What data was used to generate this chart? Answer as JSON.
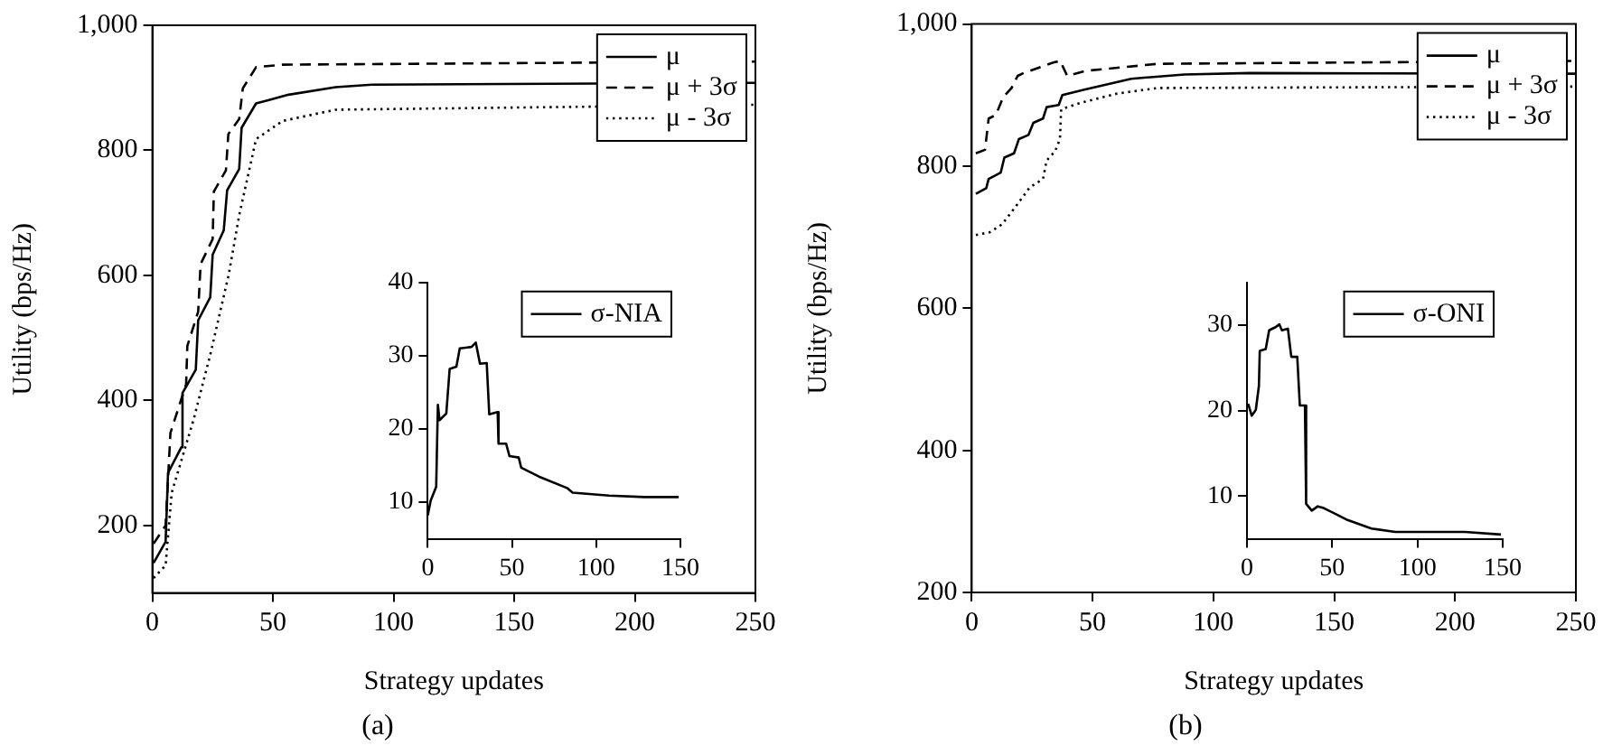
{
  "chart_data": [
    {
      "type": "line",
      "title": "(a)",
      "xlabel": "Strategy updates",
      "ylabel": "Utility (bps/Hz)",
      "xlim": [
        0,
        250
      ],
      "ylim": [
        92,
        1000
      ],
      "xticks": [
        0,
        50,
        100,
        150,
        200,
        250
      ],
      "yticks": [
        200,
        400,
        600,
        800,
        {
          "value": 1000,
          "label": "1,000"
        }
      ],
      "legend": "top right",
      "marker": "none",
      "series": [
        {
          "name": "μ",
          "color": "#000000",
          "line_style": "solid",
          "x": [
            0.5,
            5.5,
            6.5,
            12,
            12.5,
            18,
            19,
            24,
            25,
            29.6,
            31,
            36,
            37,
            43,
            48,
            56.5,
            76,
            91,
            250
          ],
          "values": [
            140,
            174,
            284,
            325,
            412,
            449,
            528,
            565,
            633,
            672,
            736,
            770,
            836,
            875,
            880,
            889,
            901,
            905,
            908
          ]
        },
        {
          "name": "μ + 3σ",
          "color": "#000000",
          "line_style": "dashed",
          "x": [
            0.5,
            5.5,
            7.5,
            14,
            14.5,
            19,
            20,
            25,
            25.5,
            30.5,
            31.5,
            36,
            37.5,
            43,
            54,
            250
          ],
          "values": [
            171,
            200,
            348,
            426,
            487,
            542,
            618,
            658,
            734,
            768,
            826,
            850,
            899,
            933,
            937,
            942
          ]
        },
        {
          "name": "μ - 3σ",
          "color": "#000000",
          "line_style": "dotted",
          "x": [
            0.5,
            5.5,
            8,
            17,
            24,
            31.6,
            36,
            43,
            54,
            76,
            250
          ],
          "values": [
            116,
            136,
            252,
            368,
            473,
            600,
            696,
            818,
            847,
            865,
            873
          ]
        }
      ]
    },
    {
      "type": "line",
      "xlim": [
        0,
        150
      ],
      "ylim": [
        5,
        40
      ],
      "xticks": [
        0,
        50,
        100,
        150
      ],
      "yticks": [
        10,
        20,
        30,
        40
      ],
      "legend": "top right",
      "marker": "none",
      "series": [
        {
          "name": "σ-NIA",
          "color": "#000000",
          "line_style": "solid",
          "x": [
            0,
            1.7,
            5,
            6,
            7,
            11,
            13,
            17,
            19,
            22.5,
            26,
            28.5,
            31,
            35,
            36.5,
            41.5,
            42,
            46.5,
            48.5,
            54,
            55.5,
            66,
            83,
            86,
            107.6,
            128.5,
            149
          ],
          "values": [
            8.2,
            10.2,
            12.1,
            23.3,
            21.2,
            22.1,
            28.2,
            28.5,
            31,
            31.1,
            31.2,
            31.8,
            28.9,
            29,
            22,
            22.3,
            18,
            18,
            16.3,
            16.1,
            14.7,
            13.5,
            11.9,
            11.3,
            10.9,
            10.7,
            10.7
          ]
        }
      ]
    },
    {
      "type": "line",
      "title": "(b)",
      "xlabel": "Strategy updates",
      "ylabel": "Utility (bps/Hz)",
      "xlim": [
        0,
        250
      ],
      "ylim": [
        200,
        1000
      ],
      "xticks": [
        0,
        50,
        100,
        150,
        200,
        250
      ],
      "yticks": [
        200,
        400,
        600,
        800,
        {
          "value": 1000,
          "label": "1,000"
        }
      ],
      "legend": "top right",
      "marker": "none",
      "series": [
        {
          "name": "μ",
          "color": "#000000",
          "line_style": "solid",
          "x": [
            1.7,
            6,
            7,
            12,
            13.5,
            17.5,
            19.5,
            23.5,
            25.5,
            29.5,
            31,
            36,
            37.5,
            47,
            66,
            88,
            115,
            250
          ],
          "values": [
            761,
            769,
            782,
            791,
            812,
            818,
            838,
            844,
            861,
            867,
            883,
            886,
            900,
            908,
            923,
            929,
            931,
            930
          ]
        },
        {
          "name": "μ + 3σ",
          "color": "#000000",
          "line_style": "dashed",
          "x": [
            1.7,
            5.5,
            7,
            10,
            13,
            16.5,
            19,
            21.5,
            30.5,
            34,
            36.6,
            39.5,
            47,
            77,
            250
          ],
          "values": [
            818,
            823,
            867,
            872,
            897,
            910,
            927,
            931,
            942,
            946,
            948,
            927,
            934,
            944,
            948
          ]
        },
        {
          "name": "μ - 3σ",
          "color": "#000000",
          "line_style": "dotted",
          "x": [
            1.7,
            7.5,
            12.5,
            17.5,
            24,
            29.5,
            31,
            34.5,
            36.5,
            37,
            45,
            60,
            77,
            250
          ],
          "values": [
            703,
            707,
            718,
            740,
            770,
            782,
            808,
            821,
            838,
            880,
            889,
            902,
            910,
            912
          ]
        }
      ]
    },
    {
      "type": "line",
      "xlim": [
        0,
        150
      ],
      "ylim": [
        5,
        35
      ],
      "xticks": [
        0,
        50,
        100,
        150
      ],
      "yticks": [
        10,
        20,
        30
      ],
      "legend": "top right",
      "marker": "none",
      "series": [
        {
          "name": "σ-ONI",
          "color": "#000000",
          "line_style": "solid",
          "x": [
            0.7,
            2.8,
            5.2,
            7,
            7.5,
            11,
            13,
            17,
            19,
            20.5,
            24,
            26,
            29.5,
            31,
            34,
            34.7,
            38,
            41.5,
            45,
            52,
            59,
            73,
            87,
            104.5,
            128,
            149
          ],
          "values": [
            20.8,
            19.4,
            20.1,
            22.9,
            27,
            27.2,
            29.4,
            29.8,
            30.1,
            29.4,
            29.6,
            26.3,
            26.3,
            20.6,
            20.6,
            9.1,
            8.3,
            8.8,
            8.6,
            7.9,
            7.2,
            6.2,
            5.8,
            5.8,
            5.8,
            5.5
          ]
        }
      ]
    }
  ]
}
